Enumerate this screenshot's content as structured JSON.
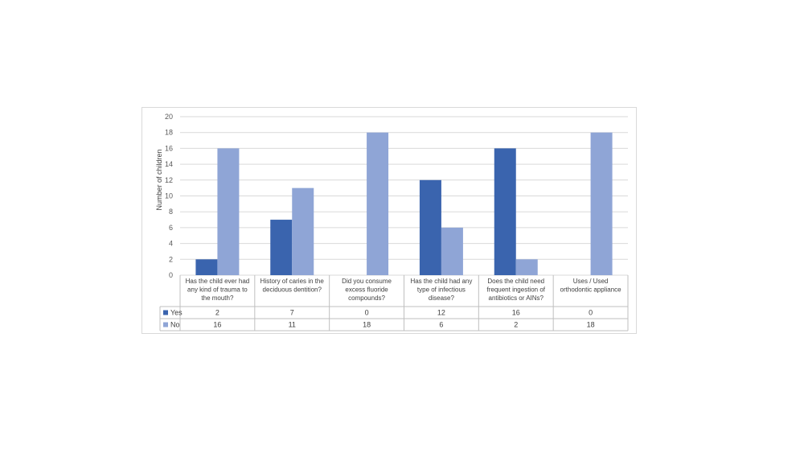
{
  "chart_data": {
    "type": "bar",
    "categories": [
      [
        "Has the child ever had",
        "any kind of trauma to",
        "the mouth?"
      ],
      [
        "History of caries in the",
        "deciduous dentition?"
      ],
      [
        "Did you consume",
        "excess fluoride",
        "compounds?"
      ],
      [
        "Has the child had any",
        "type of infectious",
        "disease?"
      ],
      [
        "Does the child need",
        "frequent ingestion of",
        "antibiotics or AINs?"
      ],
      [
        "Uses / Used",
        "orthodontic appliance"
      ]
    ],
    "series": [
      {
        "name": "Yes",
        "color": "#3a64ae",
        "values": [
          2,
          7,
          0,
          12,
          16,
          0
        ]
      },
      {
        "name": "No",
        "color": "#8fa5d6",
        "values": [
          16,
          11,
          18,
          6,
          2,
          18
        ]
      }
    ],
    "title": "",
    "xlabel": "",
    "ylabel": "Number of children",
    "ylim": [
      0,
      20
    ],
    "yticks": [
      0,
      2,
      4,
      6,
      8,
      10,
      12,
      14,
      16,
      18,
      20
    ],
    "grid": true,
    "legend": "data-table"
  }
}
